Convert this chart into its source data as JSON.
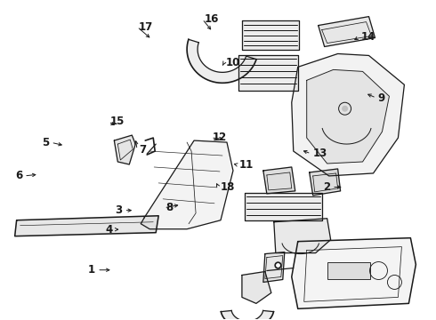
{
  "bg_color": "#ffffff",
  "line_color": "#1a1a1a",
  "label_fontsize": 8.5,
  "label_fontweight": "bold",
  "label_positions": {
    "1": [
      0.218,
      0.845,
      "right",
      0.258,
      0.845
    ],
    "2": [
      0.758,
      0.585,
      "right",
      0.79,
      0.585
    ],
    "3": [
      0.28,
      0.658,
      "right",
      0.308,
      0.658
    ],
    "4": [
      0.258,
      0.718,
      "right",
      0.278,
      0.718
    ],
    "5": [
      0.112,
      0.445,
      "right",
      0.148,
      0.455
    ],
    "6": [
      0.05,
      0.55,
      "right",
      0.088,
      0.545
    ],
    "7": [
      0.318,
      0.468,
      "left",
      0.31,
      0.43
    ],
    "8": [
      0.38,
      0.65,
      "left",
      0.415,
      0.64
    ],
    "9": [
      0.868,
      0.305,
      "left",
      0.838,
      0.29
    ],
    "10": [
      0.518,
      0.195,
      "left",
      0.508,
      0.21
    ],
    "11": [
      0.548,
      0.515,
      "left",
      0.53,
      0.51
    ],
    "12": [
      0.488,
      0.43,
      "left",
      0.518,
      0.435
    ],
    "13": [
      0.718,
      0.48,
      "left",
      0.69,
      0.468
    ],
    "14": [
      0.828,
      0.115,
      "left",
      0.808,
      0.128
    ],
    "15": [
      0.252,
      0.38,
      "left",
      0.268,
      0.395
    ],
    "16": [
      0.468,
      0.058,
      "left",
      0.488,
      0.098
    ],
    "17": [
      0.318,
      0.082,
      "left",
      0.348,
      0.122
    ],
    "18": [
      0.505,
      0.585,
      "left",
      0.496,
      0.572
    ]
  }
}
